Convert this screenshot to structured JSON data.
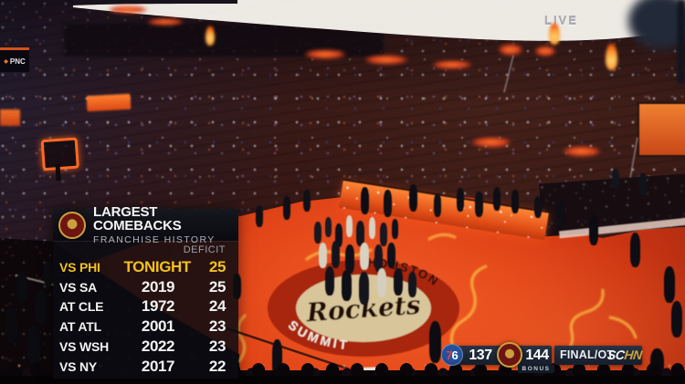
{
  "broadcast": {
    "live_label": "LIVE",
    "status": "FINAL/OT",
    "network_part1": "SC",
    "network_part2": "HN",
    "network_gold": "#c9a23e"
  },
  "scorebug": {
    "away_team": "76ers",
    "away_logo_7": "7",
    "away_logo_6": "6",
    "away_score": "137",
    "home_team": "Rockets",
    "home_score": "144",
    "bonus_label": "BONUS",
    "bar_color": "#1e2735"
  },
  "stats_panel": {
    "title": "LARGEST COMEBACKS",
    "subtitle": "FRANCHISE HISTORY",
    "deficit_header": "DEFICIT",
    "highlight_color": "#f3c01e",
    "rows": [
      {
        "opponent": "VS PHI",
        "when": "TONIGHT",
        "deficit": "25"
      },
      {
        "opponent": "VS SA",
        "when": "2019",
        "deficit": "25"
      },
      {
        "opponent": "AT CLE",
        "when": "1972",
        "deficit": "24"
      },
      {
        "opponent": "AT ATL",
        "when": "2001",
        "deficit": "23"
      },
      {
        "opponent": "VS WSH",
        "when": "2022",
        "deficit": "23"
      },
      {
        "opponent": "VS NY",
        "when": "2017",
        "deficit": "22"
      }
    ]
  },
  "signs": {
    "pnc_label": "PNC"
  },
  "court": {
    "script_text": "Rockets",
    "arc_top_text": "HOUSTON",
    "arc_bottom_text": "SUMMIT",
    "court_color": "#e34618",
    "flame_color": "#ffce4a"
  }
}
